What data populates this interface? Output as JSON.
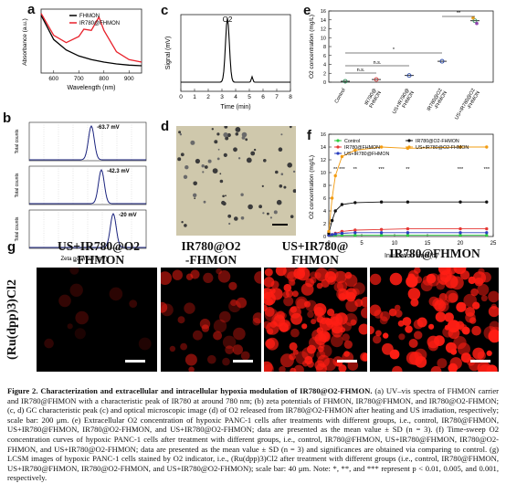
{
  "panels": {
    "a": {
      "label": "a",
      "xlabel": "Wavelength (nm)",
      "ylabel": "Absorbance (a.u.)",
      "legend": [
        "FHMON",
        "IR780@FHMON"
      ],
      "xticks": [
        "600",
        "700",
        "800",
        "900"
      ]
    },
    "b": {
      "label": "b",
      "xlabel": "Zeta potential (mV)",
      "ylabel": "Total counts",
      "annotations": [
        "-63.7 mV",
        "-42.3 mV",
        "-20 mV"
      ]
    },
    "c": {
      "label": "c",
      "peak_label": "O2",
      "xlabel": "Time (min)",
      "ylabel": "Signal (mV)",
      "xticks": [
        "0",
        "1",
        "2",
        "3",
        "4",
        "5",
        "6",
        "7",
        "8"
      ]
    },
    "d": {
      "label": "d"
    },
    "e": {
      "label": "e",
      "ylabel": "O2 concentration (mg/L)",
      "yticks": [
        "0",
        "2",
        "4",
        "6",
        "8",
        "10",
        "12",
        "14",
        "16"
      ],
      "categories": [
        "Control",
        "IR780@\nFHMON",
        "US+IR780@\nFHMON",
        "IR780@O2\n-FHMON",
        "US+IR780@O2\n-FHMON"
      ],
      "sig": [
        "n.s.",
        "n.s.",
        "*",
        "**"
      ]
    },
    "f": {
      "label": "f",
      "xlabel": "Incubation time (h)",
      "ylabel": "O2 concentration (mg/L)",
      "legend": [
        "Control",
        "IR780@FHMON",
        "US+IR780@FHMON",
        "IR780@O2-FHMON",
        "US+IR780@O2-FHMON"
      ],
      "xticks": [
        "0",
        "5",
        "10",
        "15",
        "20",
        "25"
      ],
      "yticks": [
        "0",
        "2",
        "4",
        "6",
        "8",
        "10",
        "12",
        "14",
        "16"
      ],
      "stars": [
        "**",
        "***",
        "**",
        "***",
        "**",
        "***",
        "***"
      ]
    },
    "g": {
      "label": "g",
      "ylabel": "(Ru(dpp)3)Cl2",
      "headers": [
        "US+IR780@O2\n-FHMON",
        "IR780@O2\n-FHMON",
        "US+IR780@\nFHMON",
        "IR780@FHMON"
      ]
    }
  },
  "chart_data": [
    {
      "type": "line",
      "panel": "a",
      "xlabel": "Wavelength (nm)",
      "ylabel": "Absorbance (a.u.)",
      "series": [
        {
          "name": "FHMON",
          "x": [
            550,
            600,
            650,
            700,
            750,
            800,
            850,
            900,
            950
          ],
          "y": [
            0.95,
            0.55,
            0.38,
            0.28,
            0.22,
            0.18,
            0.15,
            0.13,
            0.12
          ]
        },
        {
          "name": "IR780@FHMON",
          "x": [
            550,
            600,
            650,
            700,
            720,
            750,
            780,
            800,
            850,
            900,
            950
          ],
          "y": [
            0.98,
            0.62,
            0.5,
            0.6,
            0.72,
            0.7,
            0.92,
            0.7,
            0.35,
            0.22,
            0.18
          ]
        }
      ]
    },
    {
      "type": "bar",
      "panel": "e",
      "ylabel": "O2 concentration (mg/L)",
      "ylim": [
        0,
        16
      ],
      "categories": [
        "Control",
        "IR780@FHMON",
        "US+IR780@FHMON",
        "IR780@O2-FHMON",
        "US+IR780@O2-FHMON"
      ],
      "values": [
        0.2,
        0.6,
        1.5,
        4.7,
        13.8
      ]
    },
    {
      "type": "line",
      "panel": "f",
      "xlabel": "Incubation time (h)",
      "ylabel": "O2 concentration (mg/L)",
      "ylim": [
        0,
        16
      ],
      "xlim": [
        0,
        25
      ],
      "x": [
        0,
        0.5,
        1,
        2,
        4,
        8,
        12,
        20,
        24
      ],
      "series": [
        {
          "name": "Control",
          "values": [
            0.2,
            0.2,
            0.2,
            0.2,
            0.2,
            0.2,
            0.2,
            0.2,
            0.2
          ]
        },
        {
          "name": "IR780@FHMON",
          "values": [
            0.2,
            0.3,
            0.5,
            0.8,
            1.0,
            1.1,
            1.2,
            1.2,
            1.2
          ]
        },
        {
          "name": "US+IR780@FHMON",
          "values": [
            0.2,
            0.3,
            0.4,
            0.5,
            0.6,
            0.6,
            0.6,
            0.6,
            0.6
          ]
        },
        {
          "name": "IR780@O2-FHMON",
          "values": [
            0.5,
            2.5,
            4.0,
            5.0,
            5.3,
            5.4,
            5.4,
            5.4,
            5.4
          ]
        },
        {
          "name": "US+IR780@O2-FHMON",
          "values": [
            0.8,
            6.0,
            9.5,
            12.5,
            13.5,
            14.0,
            13.8,
            14.0,
            14.0
          ]
        }
      ]
    }
  ],
  "caption": {
    "lead": "Figure 2. Characterization and extracellular and intracellular hypoxia modulation of IR780@O2-FHMON.",
    "body": " (a) UV–vis spectra of FHMON carrier and IR780@FHMON with a characteristic peak of IR780 at around 780 nm; (b) zeta potentials of FHMON, IR780@FHMON, and IR780@O2-FHMON; (c, d) GC characteristic peak (c) and optical microscopic image (d) of O2 released from IR780@O2-FHMON after heating and US irradiation, respectively; scale bar: 200 μm. (e) Extracellular O2 concentration of hypoxic PANC-1 cells after treatments with different groups, i.e., control, IR780@FHMON, US+IR780@FHMON, IR780@O2-FHMON, and US+IR780@O2-FHMON; data are presented as the mean value ± SD (n = 3). (f) Time-sweep O2 concentration curves of hypoxic PANC-1 cells after treatment with different groups, i.e., control, IR780@FHMON, US+IR780@FHMON, IR780@O2-FHMON, and US+IR780@O2-FHMON; data are presented as the mean value ± SD (n = 3) and significances are obtained via comparing to control. (g) LCSM images of hypoxic PANC-1 cells stained by O2 indicator, i.e., (Ru(dpp)3)Cl2 after treatment with different groups (i.e., control, IR780@FHMON, US+IR780@FHMON, IR780@O2-FHMON, and US+IR780@O2-FHMON); scale bar: 40 μm. Note: *, **, and *** represent p < 0.01, 0.005, and 0.001, respectively."
  }
}
